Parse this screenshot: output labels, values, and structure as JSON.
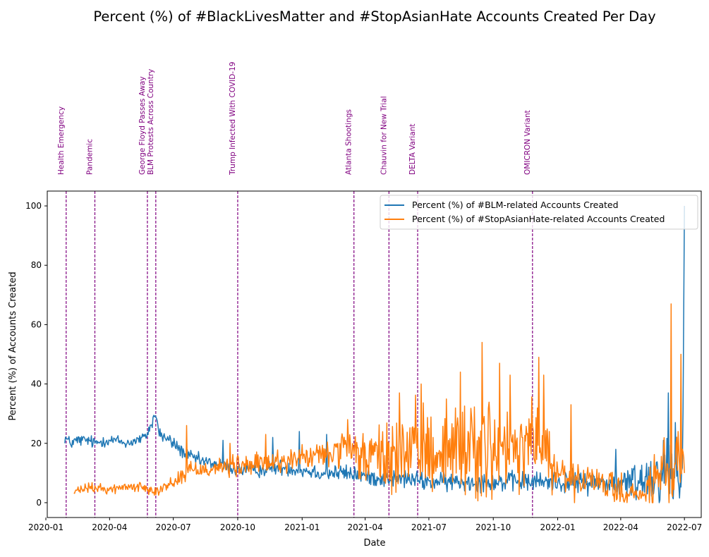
{
  "chart_data": {
    "type": "line",
    "title": "Percent (%) of #BlackLivesMatter and #StopAsianHate Accounts Created Per Day",
    "xlabel": "Date",
    "ylabel": "Percent (%) of Accounts Created",
    "x_range": [
      "2020-01-03",
      "2022-07-25"
    ],
    "ylim": [
      -5,
      105
    ],
    "x_ticks": [
      {
        "date": "2020-01-01",
        "label": "2020-01"
      },
      {
        "date": "2020-04-01",
        "label": "2020-04"
      },
      {
        "date": "2020-07-01",
        "label": "2020-07"
      },
      {
        "date": "2020-10-01",
        "label": "2020-10"
      },
      {
        "date": "2021-01-01",
        "label": "2021-01"
      },
      {
        "date": "2021-04-01",
        "label": "2021-04"
      },
      {
        "date": "2021-07-01",
        "label": "2021-07"
      },
      {
        "date": "2021-10-01",
        "label": "2021-10"
      },
      {
        "date": "2022-01-01",
        "label": "2022-01"
      },
      {
        "date": "2022-04-01",
        "label": "2022-04"
      },
      {
        "date": "2022-07-01",
        "label": "2022-07"
      }
    ],
    "y_ticks": [
      0,
      20,
      40,
      60,
      80,
      100
    ],
    "grid": false,
    "legend_position": "top-right",
    "events": [
      {
        "date": "2020-01-30",
        "label": "Health Emergency"
      },
      {
        "date": "2020-03-11",
        "label": "Pandemic"
      },
      {
        "date": "2020-05-25",
        "label": "George Floyd Passes Away"
      },
      {
        "date": "2020-06-06",
        "label": "BLM Protests Across Country"
      },
      {
        "date": "2020-10-01",
        "label": "Trump Infected With COVID-19"
      },
      {
        "date": "2021-03-16",
        "label": "Atlanta Shootings"
      },
      {
        "date": "2021-05-05",
        "label": "Chauvin for New Trial"
      },
      {
        "date": "2021-06-15",
        "label": "DELTA Variant"
      },
      {
        "date": "2021-11-26",
        "label": "OMICRON Variant"
      }
    ],
    "series": [
      {
        "name": "Percent (%) of #BLM-related Accounts Created",
        "color": "#1f77b4",
        "start_date": "2020-01-28",
        "end_date": "2022-07-01",
        "points": [
          [
            "2020-01-28",
            22
          ],
          [
            "2020-02-05",
            20
          ],
          [
            "2020-02-15",
            21
          ],
          [
            "2020-03-01",
            21
          ],
          [
            "2020-03-11",
            20
          ],
          [
            "2020-03-25",
            21
          ],
          [
            "2020-04-10",
            21
          ],
          [
            "2020-04-25",
            20
          ],
          [
            "2020-05-10",
            21
          ],
          [
            "2020-05-22",
            22
          ],
          [
            "2020-06-01",
            27
          ],
          [
            "2020-06-05",
            30
          ],
          [
            "2020-06-12",
            23
          ],
          [
            "2020-07-01",
            20
          ],
          [
            "2020-07-20",
            16
          ],
          [
            "2020-08-10",
            14
          ],
          [
            "2020-09-01",
            13
          ],
          [
            "2020-10-01",
            11
          ],
          [
            "2020-11-01",
            11
          ],
          [
            "2020-12-01",
            12
          ],
          [
            "2021-01-01",
            11
          ],
          [
            "2021-02-01",
            10
          ],
          [
            "2021-03-01",
            10
          ],
          [
            "2021-04-01",
            9
          ],
          [
            "2021-05-01",
            8
          ],
          [
            "2021-06-01",
            8
          ],
          [
            "2021-07-01",
            7
          ],
          [
            "2021-08-01",
            7
          ],
          [
            "2021-09-01",
            7
          ],
          [
            "2021-10-01",
            7
          ],
          [
            "2021-11-01",
            7
          ],
          [
            "2021-12-01",
            7
          ],
          [
            "2022-01-01",
            7
          ],
          [
            "2022-02-01",
            7
          ],
          [
            "2022-03-01",
            7
          ],
          [
            "2022-04-01",
            6
          ],
          [
            "2022-05-01",
            8
          ],
          [
            "2022-05-20",
            9
          ],
          [
            "2022-06-01",
            12
          ],
          [
            "2022-06-15",
            10
          ],
          [
            "2022-06-28",
            8
          ],
          [
            "2022-07-01",
            100
          ]
        ],
        "noise": [
          [
            "2020-01-28",
            1.6
          ],
          [
            "2020-05-25",
            1.4
          ],
          [
            "2020-06-15",
            1.8
          ],
          [
            "2020-09-01",
            1.6
          ],
          [
            "2021-01-01",
            2.0
          ],
          [
            "2021-06-01",
            2.2
          ],
          [
            "2021-12-01",
            2.6
          ],
          [
            "2022-04-01",
            3.0
          ],
          [
            "2022-05-25",
            9.0
          ],
          [
            "2022-06-30",
            9.0
          ]
        ],
        "spikes": [
          [
            "2020-09-10",
            21
          ],
          [
            "2020-11-20",
            22
          ],
          [
            "2020-12-28",
            24
          ],
          [
            "2021-02-05",
            23
          ],
          [
            "2022-03-25",
            18
          ],
          [
            "2022-06-08",
            37
          ],
          [
            "2022-06-18",
            27
          ]
        ]
      },
      {
        "name": "Percent (%) of #StopAsianHate-related Accounts Created",
        "color": "#ff7f0e",
        "start_date": "2020-02-10",
        "end_date": "2022-07-01",
        "points": [
          [
            "2020-02-10",
            3.5
          ],
          [
            "2020-03-01",
            5
          ],
          [
            "2020-04-01",
            4.5
          ],
          [
            "2020-05-01",
            5.5
          ],
          [
            "2020-05-25",
            5
          ],
          [
            "2020-06-10",
            4
          ],
          [
            "2020-07-01",
            7
          ],
          [
            "2020-07-25",
            11
          ],
          [
            "2020-09-01",
            12
          ],
          [
            "2020-10-01",
            12
          ],
          [
            "2020-11-01",
            13
          ],
          [
            "2020-12-01",
            14
          ],
          [
            "2021-01-01",
            15
          ],
          [
            "2021-02-01",
            16
          ],
          [
            "2021-03-01",
            18
          ],
          [
            "2021-04-01",
            15
          ],
          [
            "2021-05-01",
            15
          ],
          [
            "2021-06-01",
            17
          ],
          [
            "2021-07-01",
            18
          ],
          [
            "2021-08-01",
            18
          ],
          [
            "2021-09-01",
            20
          ],
          [
            "2021-10-01",
            17
          ],
          [
            "2021-11-01",
            15
          ],
          [
            "2021-11-26",
            22
          ],
          [
            "2021-12-15",
            18
          ],
          [
            "2022-01-01",
            8
          ],
          [
            "2022-02-01",
            7
          ],
          [
            "2022-03-01",
            7
          ],
          [
            "2022-04-01",
            4
          ],
          [
            "2022-05-01",
            2
          ],
          [
            "2022-06-01",
            10
          ],
          [
            "2022-07-01",
            10
          ]
        ],
        "noise": [
          [
            "2020-02-10",
            1.2
          ],
          [
            "2020-06-01",
            1.2
          ],
          [
            "2020-08-01",
            2.5
          ],
          [
            "2020-12-01",
            3.0
          ],
          [
            "2021-03-01",
            4.0
          ],
          [
            "2021-05-01",
            9.0
          ],
          [
            "2021-09-01",
            13.0
          ],
          [
            "2021-12-15",
            10.0
          ],
          [
            "2022-02-01",
            4.0
          ],
          [
            "2022-05-01",
            3.0
          ],
          [
            "2022-06-15",
            12.0
          ],
          [
            "2022-07-01",
            12.0
          ]
        ],
        "spikes": [
          [
            "2020-07-20",
            26
          ],
          [
            "2020-09-20",
            20
          ],
          [
            "2020-11-10",
            23
          ],
          [
            "2021-03-07",
            28
          ],
          [
            "2021-05-20",
            37
          ],
          [
            "2021-06-20",
            40
          ],
          [
            "2021-08-15",
            44
          ],
          [
            "2021-09-15",
            54
          ],
          [
            "2021-10-10",
            47
          ],
          [
            "2021-10-25",
            43
          ],
          [
            "2021-12-05",
            49
          ],
          [
            "2021-12-12",
            43
          ],
          [
            "2022-01-20",
            33
          ],
          [
            "2022-06-12",
            67
          ],
          [
            "2022-06-26",
            50
          ]
        ]
      }
    ]
  }
}
